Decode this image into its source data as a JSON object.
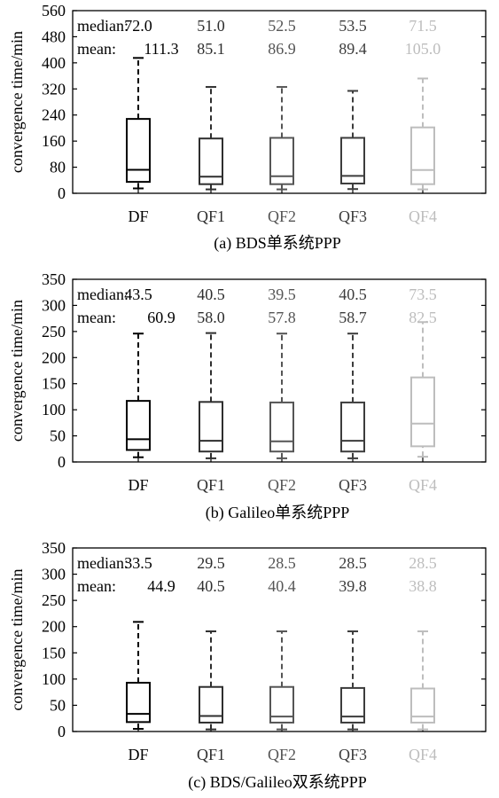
{
  "figure": {
    "ylabel": "convergence time/min",
    "median_label": "median:",
    "mean_label": "mean:",
    "categories": [
      "DF",
      "QF1",
      "QF2",
      "QF3",
      "QF4"
    ],
    "series_colors": [
      "#000000",
      "#2e2e2e",
      "#555555",
      "#3c3c3c",
      "#bdbdbd"
    ]
  },
  "chart_data": [
    {
      "type": "box",
      "caption": "(a) BDS单系统PPP",
      "ylim": [
        0,
        560
      ],
      "yticks": [
        0,
        80,
        160,
        240,
        320,
        400,
        480,
        560
      ],
      "grid": false,
      "categories": [
        "DF",
        "QF1",
        "QF2",
        "QF3",
        "QF4"
      ],
      "median_text": [
        "72.0",
        "51.0",
        "52.5",
        "53.5",
        "71.5"
      ],
      "mean_text": [
        "111.3",
        "85.1",
        "86.9",
        "89.4",
        "105.0"
      ],
      "boxes": [
        {
          "name": "DF",
          "whisker_low": 15,
          "q1": 35,
          "median": 72.0,
          "q3": 228,
          "whisker_high": 415,
          "mean": 111.3
        },
        {
          "name": "QF1",
          "whisker_low": 12,
          "q1": 28,
          "median": 51.0,
          "q3": 168,
          "whisker_high": 326,
          "mean": 85.1
        },
        {
          "name": "QF2",
          "whisker_low": 12,
          "q1": 28,
          "median": 52.5,
          "q3": 170,
          "whisker_high": 326,
          "mean": 86.9
        },
        {
          "name": "QF3",
          "whisker_low": 13,
          "q1": 30,
          "median": 53.5,
          "q3": 170,
          "whisker_high": 314,
          "mean": 89.4
        },
        {
          "name": "QF4",
          "whisker_low": 12,
          "q1": 28,
          "median": 71.5,
          "q3": 202,
          "whisker_high": 352,
          "mean": 105.0
        }
      ]
    },
    {
      "type": "box",
      "caption": "(b) Galileo单系统PPP",
      "ylim": [
        0,
        350
      ],
      "yticks": [
        0,
        50,
        100,
        150,
        200,
        250,
        300,
        350
      ],
      "grid": false,
      "categories": [
        "DF",
        "QF1",
        "QF2",
        "QF3",
        "QF4"
      ],
      "median_text": [
        "43.5",
        "40.5",
        "39.5",
        "40.5",
        "73.5"
      ],
      "mean_text": [
        "60.9",
        "58.0",
        "57.8",
        "58.7",
        "82.5"
      ],
      "boxes": [
        {
          "name": "DF",
          "whisker_low": 9,
          "q1": 23,
          "median": 43.5,
          "q3": 117,
          "whisker_high": 246,
          "mean": 60.9
        },
        {
          "name": "QF1",
          "whisker_low": 7,
          "q1": 20,
          "median": 40.5,
          "q3": 115,
          "whisker_high": 247,
          "mean": 58.0
        },
        {
          "name": "QF2",
          "whisker_low": 7,
          "q1": 20,
          "median": 39.5,
          "q3": 114,
          "whisker_high": 246,
          "mean": 57.8
        },
        {
          "name": "QF3",
          "whisker_low": 7,
          "q1": 20,
          "median": 40.5,
          "q3": 114,
          "whisker_high": 246,
          "mean": 58.7
        },
        {
          "name": "QF4",
          "whisker_low": 10,
          "q1": 30,
          "median": 73.5,
          "q3": 162,
          "whisker_high": 268,
          "mean": 82.5
        }
      ]
    },
    {
      "type": "box",
      "caption": "(c) BDS/Galileo双系统PPP",
      "ylim": [
        0,
        350
      ],
      "yticks": [
        0,
        50,
        100,
        150,
        200,
        250,
        300,
        350
      ],
      "grid": false,
      "categories": [
        "DF",
        "QF1",
        "QF2",
        "QF3",
        "QF4"
      ],
      "median_text": [
        "33.5",
        "29.5",
        "28.5",
        "28.5",
        "28.5"
      ],
      "mean_text": [
        "44.9",
        "40.5",
        "40.4",
        "39.8",
        "38.8"
      ],
      "boxes": [
        {
          "name": "DF",
          "whisker_low": 5,
          "q1": 18,
          "median": 33.5,
          "q3": 93,
          "whisker_high": 209,
          "mean": 44.9
        },
        {
          "name": "QF1",
          "whisker_low": 4,
          "q1": 17,
          "median": 29.5,
          "q3": 85,
          "whisker_high": 191,
          "mean": 40.5
        },
        {
          "name": "QF2",
          "whisker_low": 4,
          "q1": 17,
          "median": 28.5,
          "q3": 85,
          "whisker_high": 191,
          "mean": 40.4
        },
        {
          "name": "QF3",
          "whisker_low": 4,
          "q1": 17,
          "median": 28.5,
          "q3": 83,
          "whisker_high": 191,
          "mean": 39.8
        },
        {
          "name": "QF4",
          "whisker_low": 4,
          "q1": 17,
          "median": 28.5,
          "q3": 82,
          "whisker_high": 191,
          "mean": 38.8
        }
      ]
    }
  ]
}
